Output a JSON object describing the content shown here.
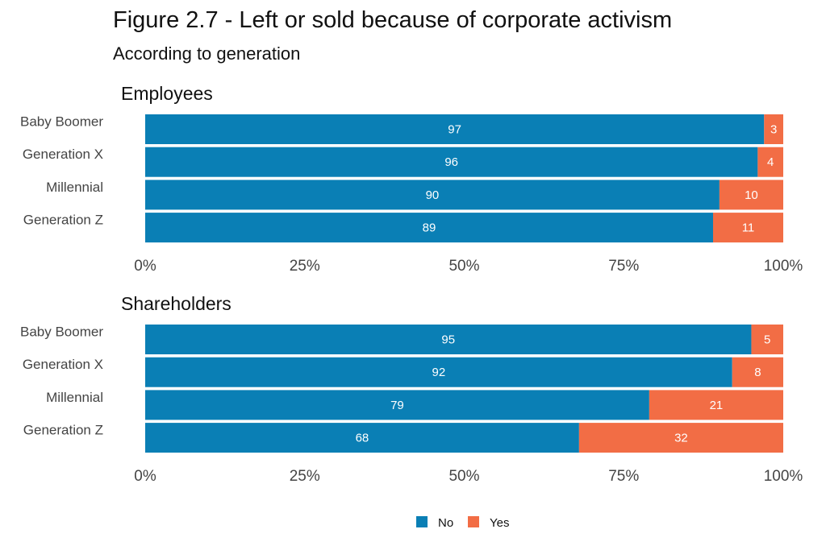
{
  "chart_data": {
    "type": "bar",
    "title": "Figure 2.7 - Left or sold because of corporate activism",
    "subtitle": "According to generation",
    "orientation": "horizontal-stacked-100",
    "categories": [
      "Baby Boomer",
      "Generation X",
      "Millennial",
      "Generation Z"
    ],
    "xlim": [
      0,
      100
    ],
    "x_ticks": [
      "0%",
      "25%",
      "50%",
      "75%",
      "100%"
    ],
    "grid": false,
    "legend": {
      "placement": "bottom",
      "entries": [
        {
          "name": "No",
          "color": "#0a7fb5"
        },
        {
          "name": "Yes",
          "color": "#f26d45"
        }
      ]
    },
    "panels": [
      {
        "title": "Employees",
        "series": [
          {
            "name": "No",
            "values": [
              97,
              96,
              90,
              89
            ]
          },
          {
            "name": "Yes",
            "values": [
              3,
              4,
              10,
              11
            ]
          }
        ]
      },
      {
        "title": "Shareholders",
        "series": [
          {
            "name": "No",
            "values": [
              95,
              92,
              79,
              68
            ]
          },
          {
            "name": "Yes",
            "values": [
              5,
              8,
              21,
              32
            ]
          }
        ]
      }
    ]
  }
}
